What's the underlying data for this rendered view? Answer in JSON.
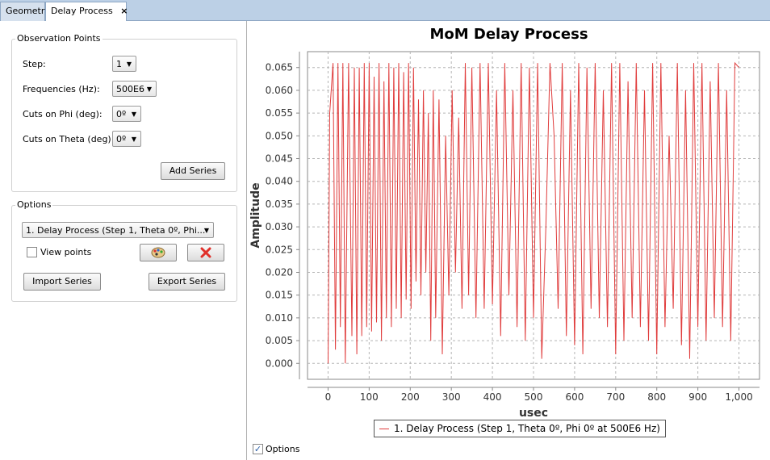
{
  "tabs": [
    {
      "label": "Geometry"
    },
    {
      "label": "Delay Process",
      "close": "×"
    }
  ],
  "observation": {
    "title": "Observation Points",
    "step_label": "Step:",
    "step_value": "1",
    "freq_label": "Frequencies (Hz):",
    "freq_value": "500E6",
    "phi_label": "Cuts on Phi (deg):",
    "phi_value": "0º",
    "theta_label": "Cuts on Theta (deg):",
    "theta_value": "0º",
    "add_series": "Add Series"
  },
  "options": {
    "title": "Options",
    "series_select": "1. Delay Process (Step 1, Theta 0º, Phi...",
    "view_points": "View points",
    "import_series": "Import Series",
    "export_series": "Export Series"
  },
  "footer": {
    "options_checkbox": "Options",
    "options_checked": true
  },
  "colors": {
    "series": "#e03c3c",
    "tab_bar": "#bcd0e6"
  },
  "chart_data": {
    "type": "line",
    "title": "MoM Delay Process",
    "xlabel": "usec",
    "ylabel": "Amplitude",
    "xlim": [
      -50,
      1050
    ],
    "ylim": [
      -0.0035,
      0.0685
    ],
    "xticks": [
      0,
      100,
      200,
      300,
      400,
      500,
      600,
      700,
      800,
      900,
      1000
    ],
    "xtick_labels": [
      "0",
      "100",
      "200",
      "300",
      "400",
      "500",
      "600",
      "700",
      "800",
      "900",
      "1,000"
    ],
    "yticks": [
      0.0,
      0.005,
      0.01,
      0.015,
      0.02,
      0.025,
      0.03,
      0.035,
      0.04,
      0.045,
      0.05,
      0.055,
      0.06,
      0.065
    ],
    "ytick_labels": [
      "0.000",
      "0.005",
      "0.010",
      "0.015",
      "0.020",
      "0.025",
      "0.030",
      "0.035",
      "0.040",
      "0.045",
      "0.050",
      "0.055",
      "0.060",
      "0.065"
    ],
    "grid": true,
    "legend": "bottom",
    "series": [
      {
        "name": "1. Delay Process (Step 1, Theta 0º, Phi 0º at 500E6 Hz)",
        "x": [
          0,
          4,
          12,
          18,
          24,
          30,
          36,
          42,
          50,
          58,
          64,
          70,
          76,
          82,
          88,
          94,
          100,
          106,
          112,
          118,
          124,
          130,
          136,
          142,
          148,
          154,
          160,
          166,
          172,
          178,
          184,
          190,
          196,
          202,
          208,
          214,
          220,
          226,
          232,
          238,
          244,
          250,
          256,
          262,
          270,
          278,
          286,
          294,
          302,
          310,
          318,
          326,
          334,
          342,
          350,
          360,
          370,
          380,
          390,
          400,
          410,
          420,
          430,
          440,
          450,
          460,
          470,
          480,
          490,
          500,
          510,
          520,
          530,
          540,
          550,
          560,
          570,
          580,
          590,
          600,
          610,
          620,
          630,
          640,
          650,
          660,
          670,
          680,
          690,
          700,
          710,
          720,
          730,
          740,
          750,
          760,
          770,
          780,
          790,
          800,
          810,
          820,
          830,
          840,
          850,
          860,
          870,
          880,
          890,
          900,
          910,
          920,
          930,
          940,
          950,
          960,
          970,
          980,
          990,
          1000
        ],
        "y": [
          0.0,
          0.055,
          0.066,
          0.003,
          0.066,
          0.008,
          0.066,
          0.0,
          0.066,
          0.006,
          0.065,
          0.002,
          0.065,
          0.006,
          0.066,
          0.008,
          0.066,
          0.007,
          0.063,
          0.009,
          0.066,
          0.005,
          0.062,
          0.01,
          0.066,
          0.008,
          0.065,
          0.012,
          0.066,
          0.01,
          0.064,
          0.014,
          0.066,
          0.012,
          0.065,
          0.018,
          0.058,
          0.015,
          0.06,
          0.02,
          0.055,
          0.005,
          0.06,
          0.01,
          0.058,
          0.002,
          0.05,
          0.015,
          0.06,
          0.02,
          0.054,
          0.012,
          0.066,
          0.015,
          0.065,
          0.01,
          0.066,
          0.012,
          0.066,
          0.013,
          0.06,
          0.006,
          0.066,
          0.015,
          0.06,
          0.008,
          0.066,
          0.005,
          0.065,
          0.01,
          0.066,
          0.001,
          0.03,
          0.066,
          0.05,
          0.012,
          0.066,
          0.006,
          0.06,
          0.004,
          0.066,
          0.002,
          0.065,
          0.012,
          0.066,
          0.01,
          0.06,
          0.008,
          0.066,
          0.002,
          0.066,
          0.005,
          0.062,
          0.01,
          0.066,
          0.008,
          0.06,
          0.005,
          0.066,
          0.002,
          0.066,
          0.008,
          0.05,
          0.012,
          0.066,
          0.004,
          0.06,
          0.001,
          0.066,
          0.008,
          0.066,
          0.005,
          0.062,
          0.01,
          0.066,
          0.008,
          0.06,
          0.005,
          0.066,
          0.065
        ]
      }
    ]
  }
}
